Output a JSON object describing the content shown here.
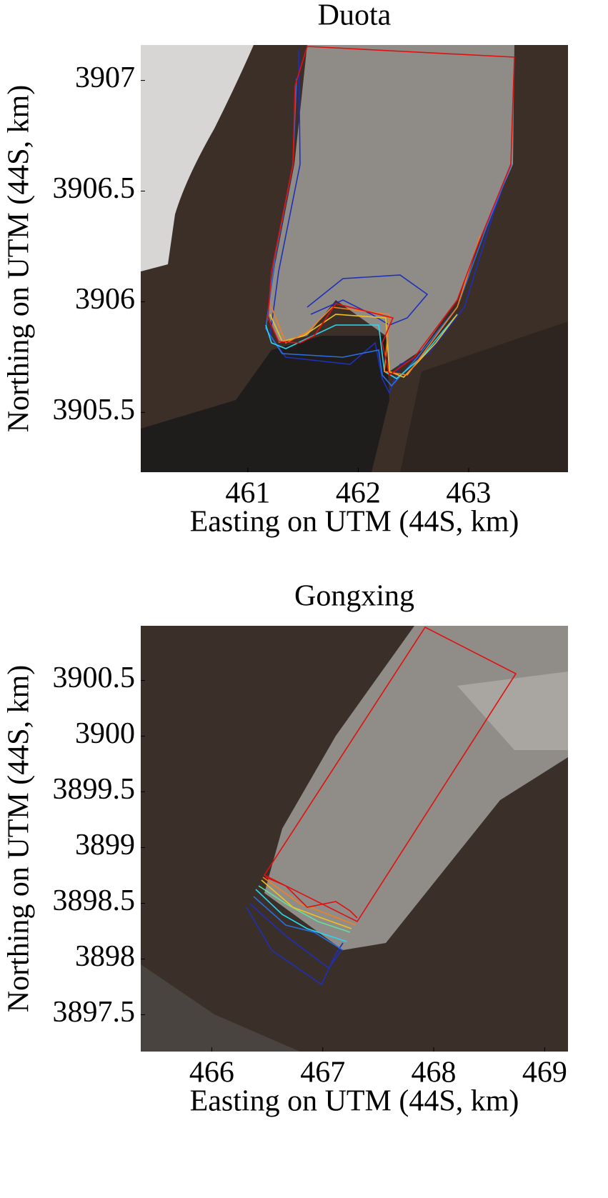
{
  "chart_data": [
    {
      "type": "map",
      "title": "Duota",
      "x_label": "Easting on UTM (44S, km)",
      "y_label": "Northing on UTM (44S, km)",
      "xlim": [
        460.03,
        463.9
      ],
      "ylim": [
        3905.23,
        3907.16
      ],
      "xticks": [
        461,
        462,
        463
      ],
      "yticks": [
        3905.5,
        3906,
        3906.5,
        3907
      ]
    },
    {
      "type": "map",
      "title": "Gongxing",
      "x_label": "Easting on UTM (44S, km)",
      "y_label": "Northing on UTM (44S, km)",
      "xlim": [
        465.36,
        469.21
      ],
      "ylim": [
        3897.17,
        3900.99
      ],
      "xticks": [
        466,
        467,
        468,
        469
      ],
      "yticks": [
        3897.5,
        3898,
        3898.5,
        3899,
        3899.5,
        3900,
        3900.5
      ]
    }
  ]
}
